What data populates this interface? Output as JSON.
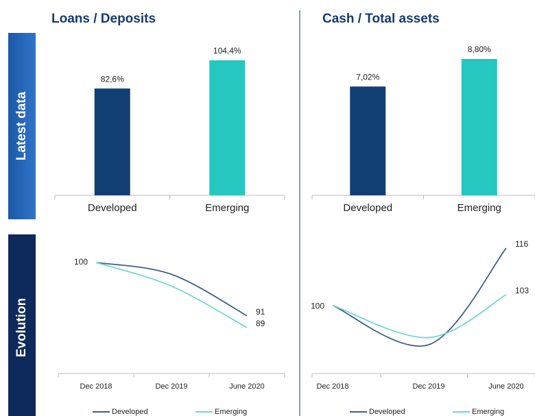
{
  "row_labels": [
    "Latest data",
    "Evolution"
  ],
  "chart_data": [
    {
      "type": "bar",
      "title": "Loans / Deposits",
      "categories": [
        "Developed",
        "Emerging"
      ],
      "values": [
        82.6,
        104.4
      ],
      "value_labels": [
        "82,6%",
        "104,4%"
      ],
      "colors": [
        "#123f73",
        "#26c6c1"
      ]
    },
    {
      "type": "bar",
      "title": "Cash / Total assets",
      "categories": [
        "Developed",
        "Emerging"
      ],
      "values": [
        7.02,
        8.8
      ],
      "value_labels": [
        "7,02%",
        "8,80%"
      ],
      "colors": [
        "#123f73",
        "#26c6c1"
      ]
    },
    {
      "type": "line",
      "categories": [
        "Dec 2018",
        "Dec 2019",
        "June 2020"
      ],
      "series": [
        {
          "name": "Developed",
          "color": "#3f5f86",
          "values": [
            100,
            98,
            91
          ]
        },
        {
          "name": "Emerging",
          "color": "#6fd6d6",
          "values": [
            100,
            96,
            89
          ]
        }
      ]
    },
    {
      "type": "line",
      "categories": [
        "Dec 2018",
        "Dec 2019",
        "June 2020"
      ],
      "series": [
        {
          "name": "Developed",
          "color": "#3f5f86",
          "values": [
            100,
            89,
            116
          ]
        },
        {
          "name": "Emerging",
          "color": "#6fd6d6",
          "values": [
            100,
            91,
            103
          ]
        }
      ]
    }
  ]
}
